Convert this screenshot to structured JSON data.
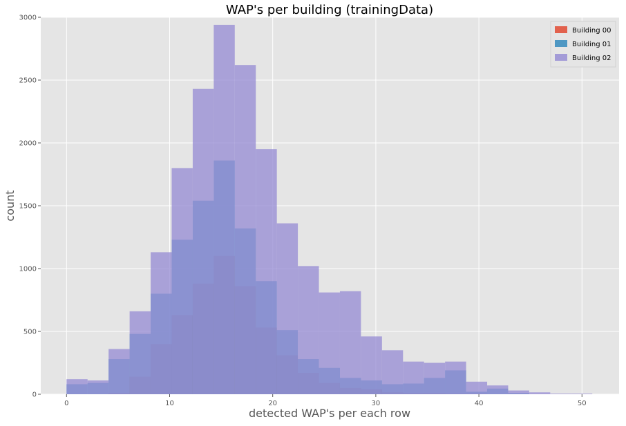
{
  "chart_data": {
    "type": "bar",
    "subtype": "overlaid-histogram",
    "title": "WAP's per building (trainingData)",
    "xlabel": "detected WAP's per each row",
    "ylabel": "count",
    "xlim": [
      -2.5,
      53.6
    ],
    "ylim": [
      0,
      3000
    ],
    "xticks": [
      0,
      10,
      20,
      30,
      40,
      50
    ],
    "yticks": [
      0,
      500,
      1000,
      1500,
      2000,
      2500,
      3000
    ],
    "grid": true,
    "legend_position": "top-right",
    "bin_edges": [
      0,
      2.04,
      4.08,
      6.12,
      8.16,
      10.2,
      12.24,
      14.28,
      16.32,
      18.36,
      20.4,
      22.44,
      24.48,
      26.52,
      28.56,
      30.6,
      32.64,
      34.68,
      36.72,
      38.76,
      40.8,
      42.84,
      44.88,
      46.92,
      48.96,
      51
    ],
    "series": [
      {
        "name": "Building 00",
        "color": "#e24a33",
        "values": [
          0,
          0,
          10,
          140,
          400,
          630,
          880,
          1100,
          860,
          530,
          310,
          170,
          90,
          50,
          40,
          15,
          10,
          10,
          5,
          5,
          0,
          0,
          0,
          0,
          0
        ]
      },
      {
        "name": "Building 01",
        "color": "#348abd",
        "values": [
          80,
          90,
          280,
          480,
          800,
          1230,
          1540,
          1860,
          1320,
          900,
          510,
          280,
          210,
          130,
          110,
          80,
          85,
          130,
          190,
          20,
          45,
          10,
          0,
          0,
          0
        ]
      },
      {
        "name": "Building 02",
        "color": "#988ed5",
        "values": [
          120,
          110,
          360,
          660,
          1130,
          1800,
          2430,
          2940,
          2620,
          1950,
          1360,
          1020,
          810,
          820,
          460,
          350,
          260,
          250,
          260,
          100,
          70,
          30,
          15,
          5,
          5
        ]
      }
    ]
  }
}
